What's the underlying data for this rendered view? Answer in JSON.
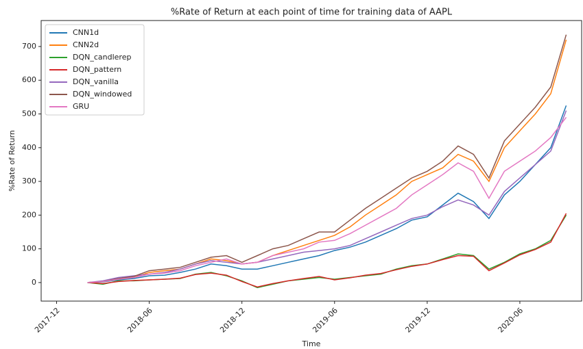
{
  "chart_data": {
    "type": "line",
    "title": "%Rate of Return at each point of time for training data of AAPL",
    "xlabel": "Time",
    "ylabel": "%Rate of Return",
    "x": [
      "2018-02",
      "2018-03",
      "2018-04",
      "2018-05",
      "2018-06",
      "2018-07",
      "2018-08",
      "2018-09",
      "2018-10",
      "2018-11",
      "2018-12",
      "2019-01",
      "2019-02",
      "2019-03",
      "2019-04",
      "2019-05",
      "2019-06",
      "2019-07",
      "2019-08",
      "2019-09",
      "2019-10",
      "2019-11",
      "2019-12",
      "2020-01",
      "2020-02",
      "2020-03",
      "2020-04",
      "2020-05",
      "2020-06",
      "2020-07",
      "2020-08",
      "2020-09"
    ],
    "xlim": [
      "2017-11",
      "2020-10"
    ],
    "xticks": [
      "2017-12",
      "2018-06",
      "2018-12",
      "2019-06",
      "2019-12",
      "2020-06"
    ],
    "ylim": [
      -55,
      777
    ],
    "yticks": [
      0,
      100,
      200,
      300,
      400,
      500,
      600,
      700
    ],
    "legend": "upper left",
    "series": [
      {
        "name": "CNN1d",
        "color": "#1f77b4",
        "values": [
          0,
          2,
          8,
          12,
          20,
          22,
          30,
          40,
          55,
          50,
          40,
          40,
          50,
          60,
          70,
          80,
          95,
          105,
          120,
          140,
          160,
          185,
          195,
          230,
          265,
          240,
          190,
          260,
          300,
          350,
          400,
          525
        ]
      },
      {
        "name": "CNN2d",
        "color": "#ff7f0e",
        "values": [
          0,
          3,
          10,
          15,
          30,
          35,
          40,
          55,
          70,
          65,
          55,
          60,
          80,
          95,
          110,
          125,
          140,
          165,
          200,
          230,
          260,
          300,
          320,
          340,
          380,
          360,
          300,
          400,
          450,
          500,
          560,
          720
        ]
      },
      {
        "name": "DQN_candlerep",
        "color": "#2ca02c",
        "values": [
          0,
          -5,
          5,
          5,
          8,
          10,
          12,
          25,
          30,
          20,
          5,
          -15,
          -5,
          5,
          10,
          15,
          10,
          15,
          20,
          25,
          40,
          50,
          55,
          70,
          85,
          80,
          40,
          60,
          85,
          100,
          125,
          200
        ]
      },
      {
        "name": "DQN_pattern",
        "color": "#d62728",
        "values": [
          0,
          -3,
          3,
          6,
          8,
          10,
          13,
          24,
          28,
          22,
          3,
          -13,
          -3,
          5,
          12,
          18,
          8,
          14,
          22,
          27,
          38,
          48,
          55,
          68,
          80,
          78,
          35,
          58,
          82,
          98,
          120,
          205
        ]
      },
      {
        "name": "DQN_vanilla",
        "color": "#9467bd",
        "values": [
          0,
          5,
          15,
          20,
          25,
          30,
          40,
          55,
          65,
          60,
          55,
          60,
          70,
          80,
          90,
          95,
          100,
          110,
          130,
          150,
          170,
          190,
          200,
          225,
          245,
          230,
          200,
          270,
          310,
          350,
          390,
          510
        ]
      },
      {
        "name": "DQN_windowed",
        "color": "#8c564b",
        "values": [
          0,
          3,
          12,
          18,
          35,
          40,
          45,
          60,
          75,
          80,
          60,
          80,
          100,
          110,
          130,
          150,
          150,
          185,
          220,
          250,
          280,
          310,
          330,
          360,
          405,
          380,
          310,
          420,
          470,
          520,
          580,
          735
        ]
      },
      {
        "name": "GRU",
        "color": "#e377c2",
        "values": [
          0,
          3,
          10,
          15,
          25,
          28,
          35,
          50,
          60,
          70,
          55,
          60,
          80,
          90,
          100,
          120,
          125,
          145,
          170,
          195,
          220,
          260,
          290,
          320,
          355,
          330,
          250,
          330,
          360,
          390,
          430,
          490
        ]
      }
    ]
  }
}
